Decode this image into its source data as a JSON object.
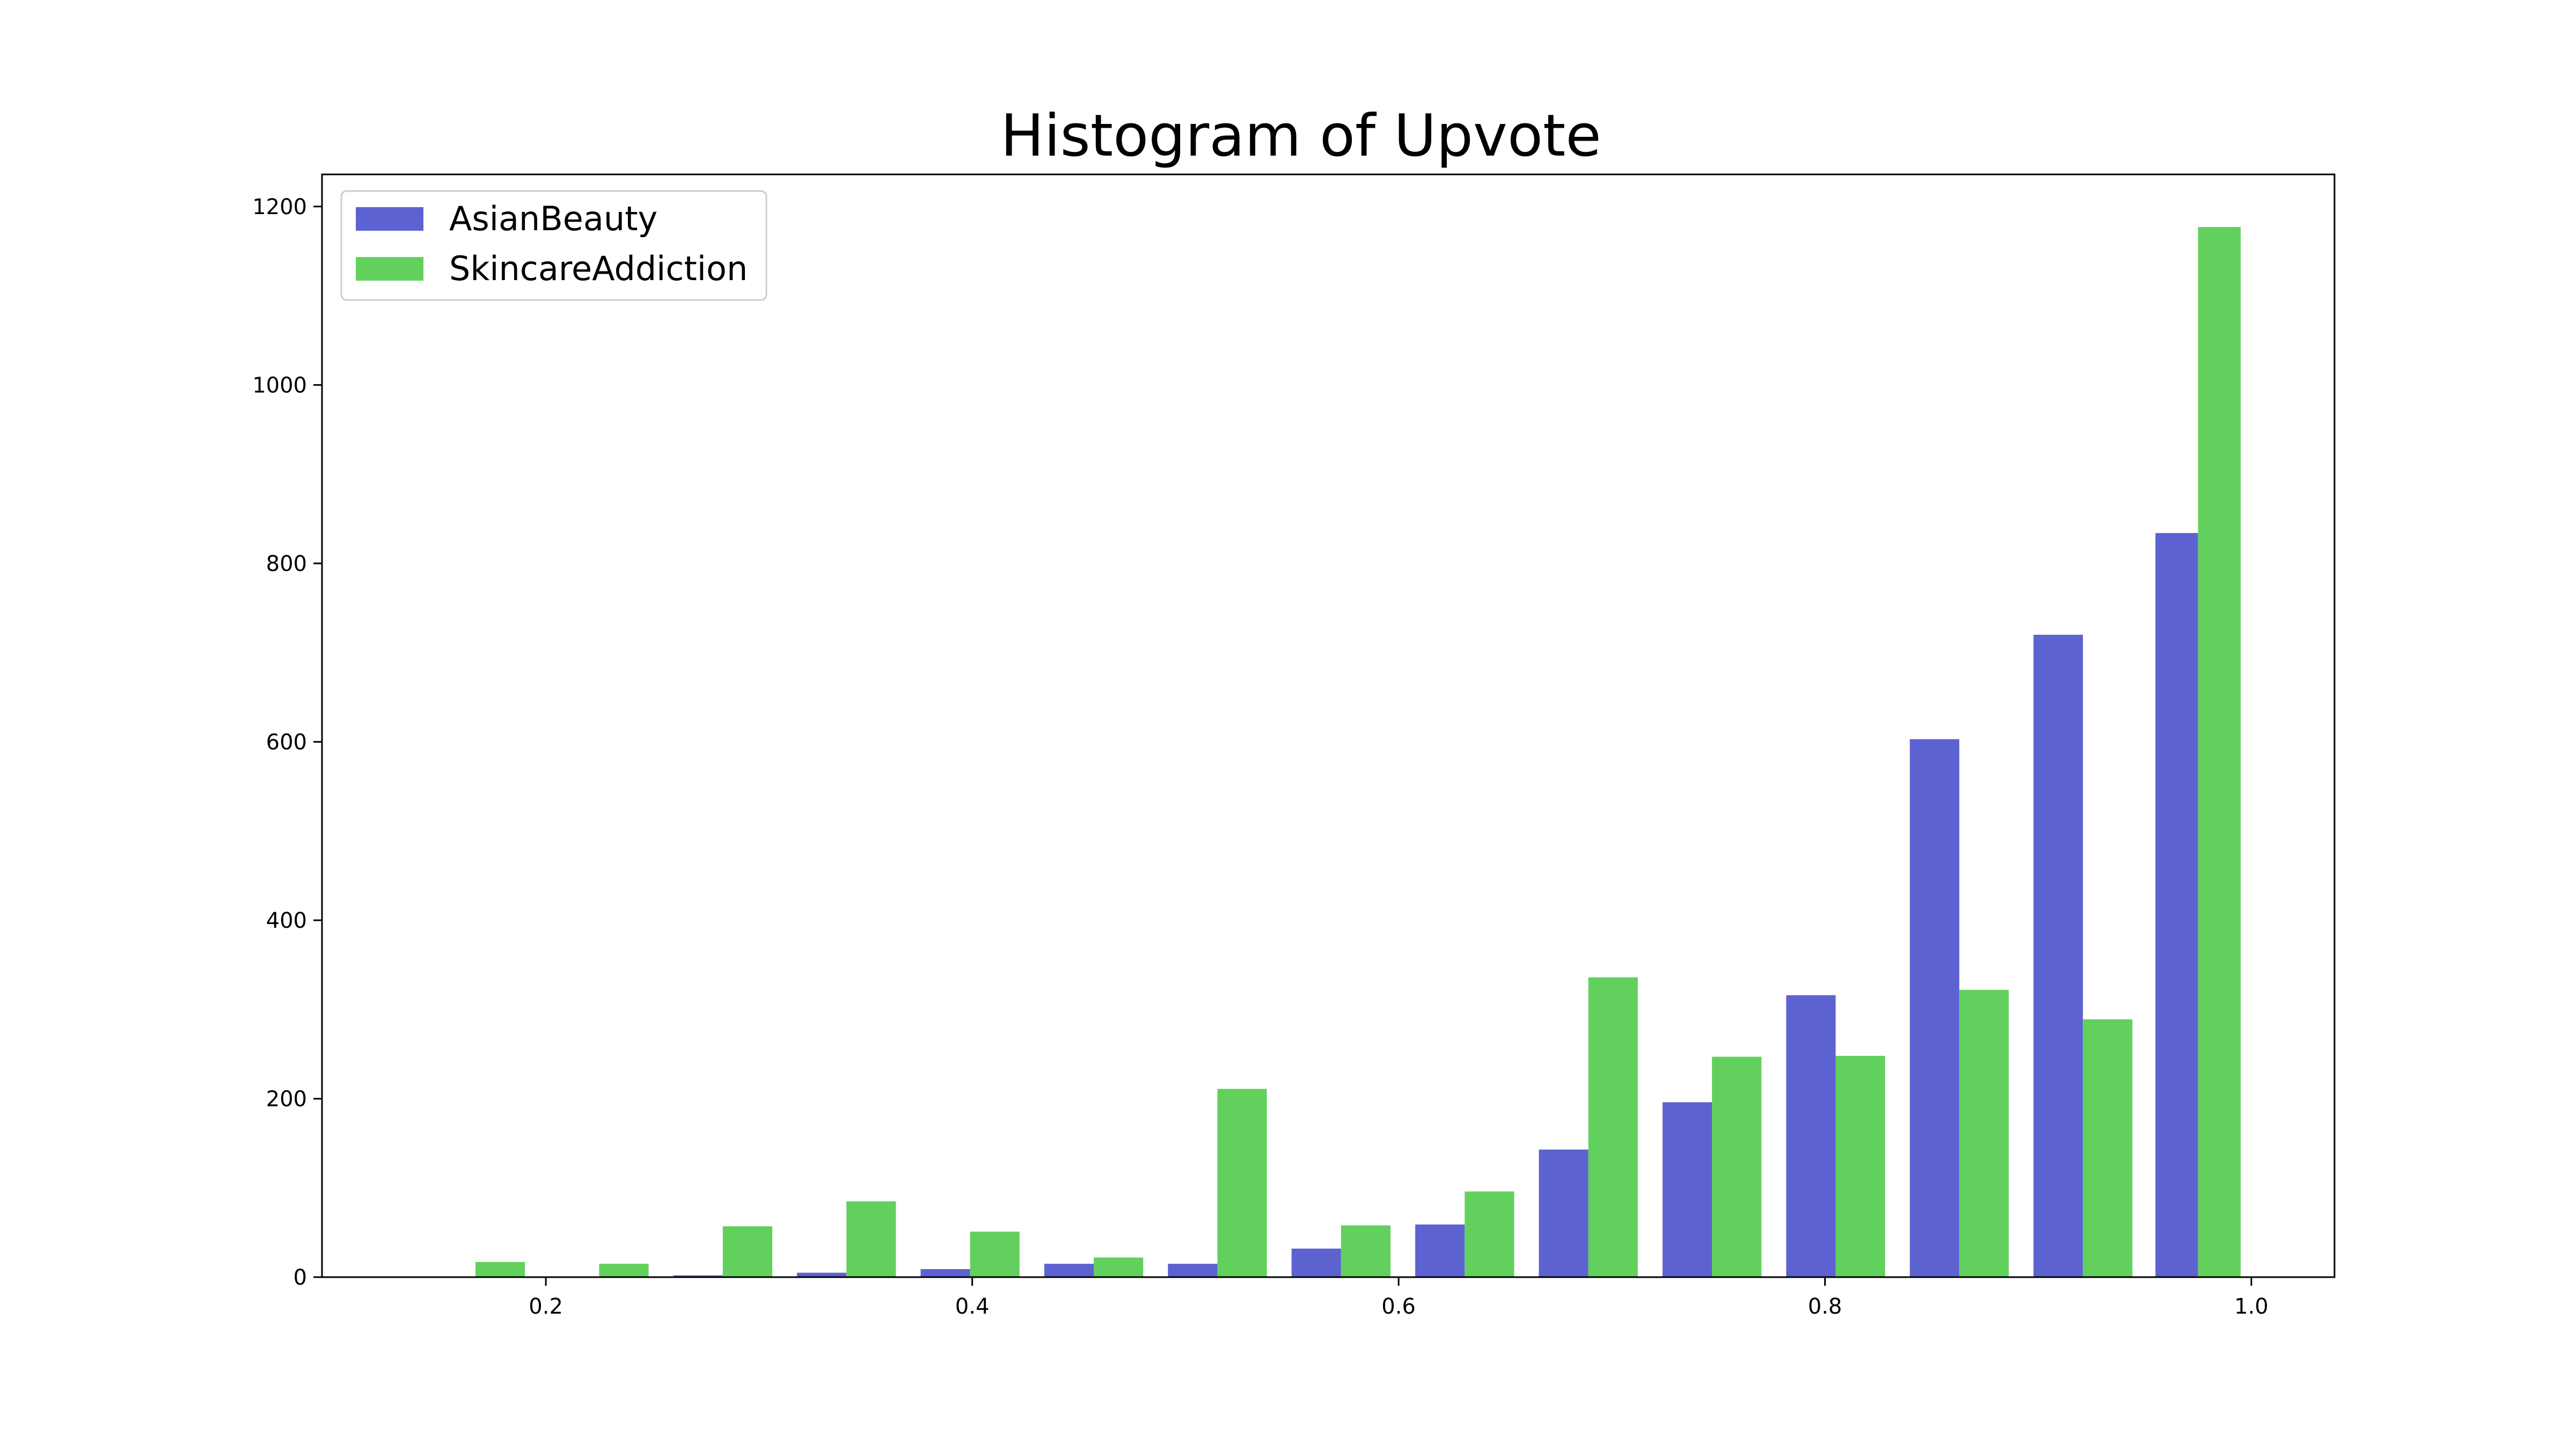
{
  "chart_data": {
    "type": "bar",
    "title": "Histogram of Upvote",
    "xlabel": "",
    "ylabel": "",
    "xlim": [
      0.095,
      1.039
    ],
    "ylim": [
      0,
      1236
    ],
    "xticks": [
      0.2,
      0.4,
      0.6,
      0.8,
      1.0
    ],
    "xtick_labels": [
      "0.2",
      "0.4",
      "0.6",
      "0.8",
      "1.0"
    ],
    "yticks": [
      0,
      200,
      400,
      600,
      800,
      1000,
      1200
    ],
    "ytick_labels": [
      "0",
      "200",
      "400",
      "600",
      "800",
      "1000",
      "1200"
    ],
    "grid": false,
    "legend_position": "top-left",
    "bin_edges": [
      0.138,
      0.196,
      0.254,
      0.312,
      0.37,
      0.428,
      0.486,
      0.544,
      0.602,
      0.66,
      0.718,
      0.776,
      0.834,
      0.892,
      0.95,
      1.0
    ],
    "series": [
      {
        "name": "AsianBeauty",
        "color": "#5d62d1",
        "values": [
          0,
          0,
          2,
          5,
          9,
          15,
          15,
          32,
          59,
          143,
          196,
          316,
          603,
          720,
          834
        ]
      },
      {
        "name": "SkincareAddiction",
        "color": "#62d05d",
        "values": [
          17,
          15,
          57,
          85,
          51,
          22,
          211,
          58,
          96,
          336,
          247,
          248,
          322,
          289,
          1177
        ]
      }
    ]
  }
}
